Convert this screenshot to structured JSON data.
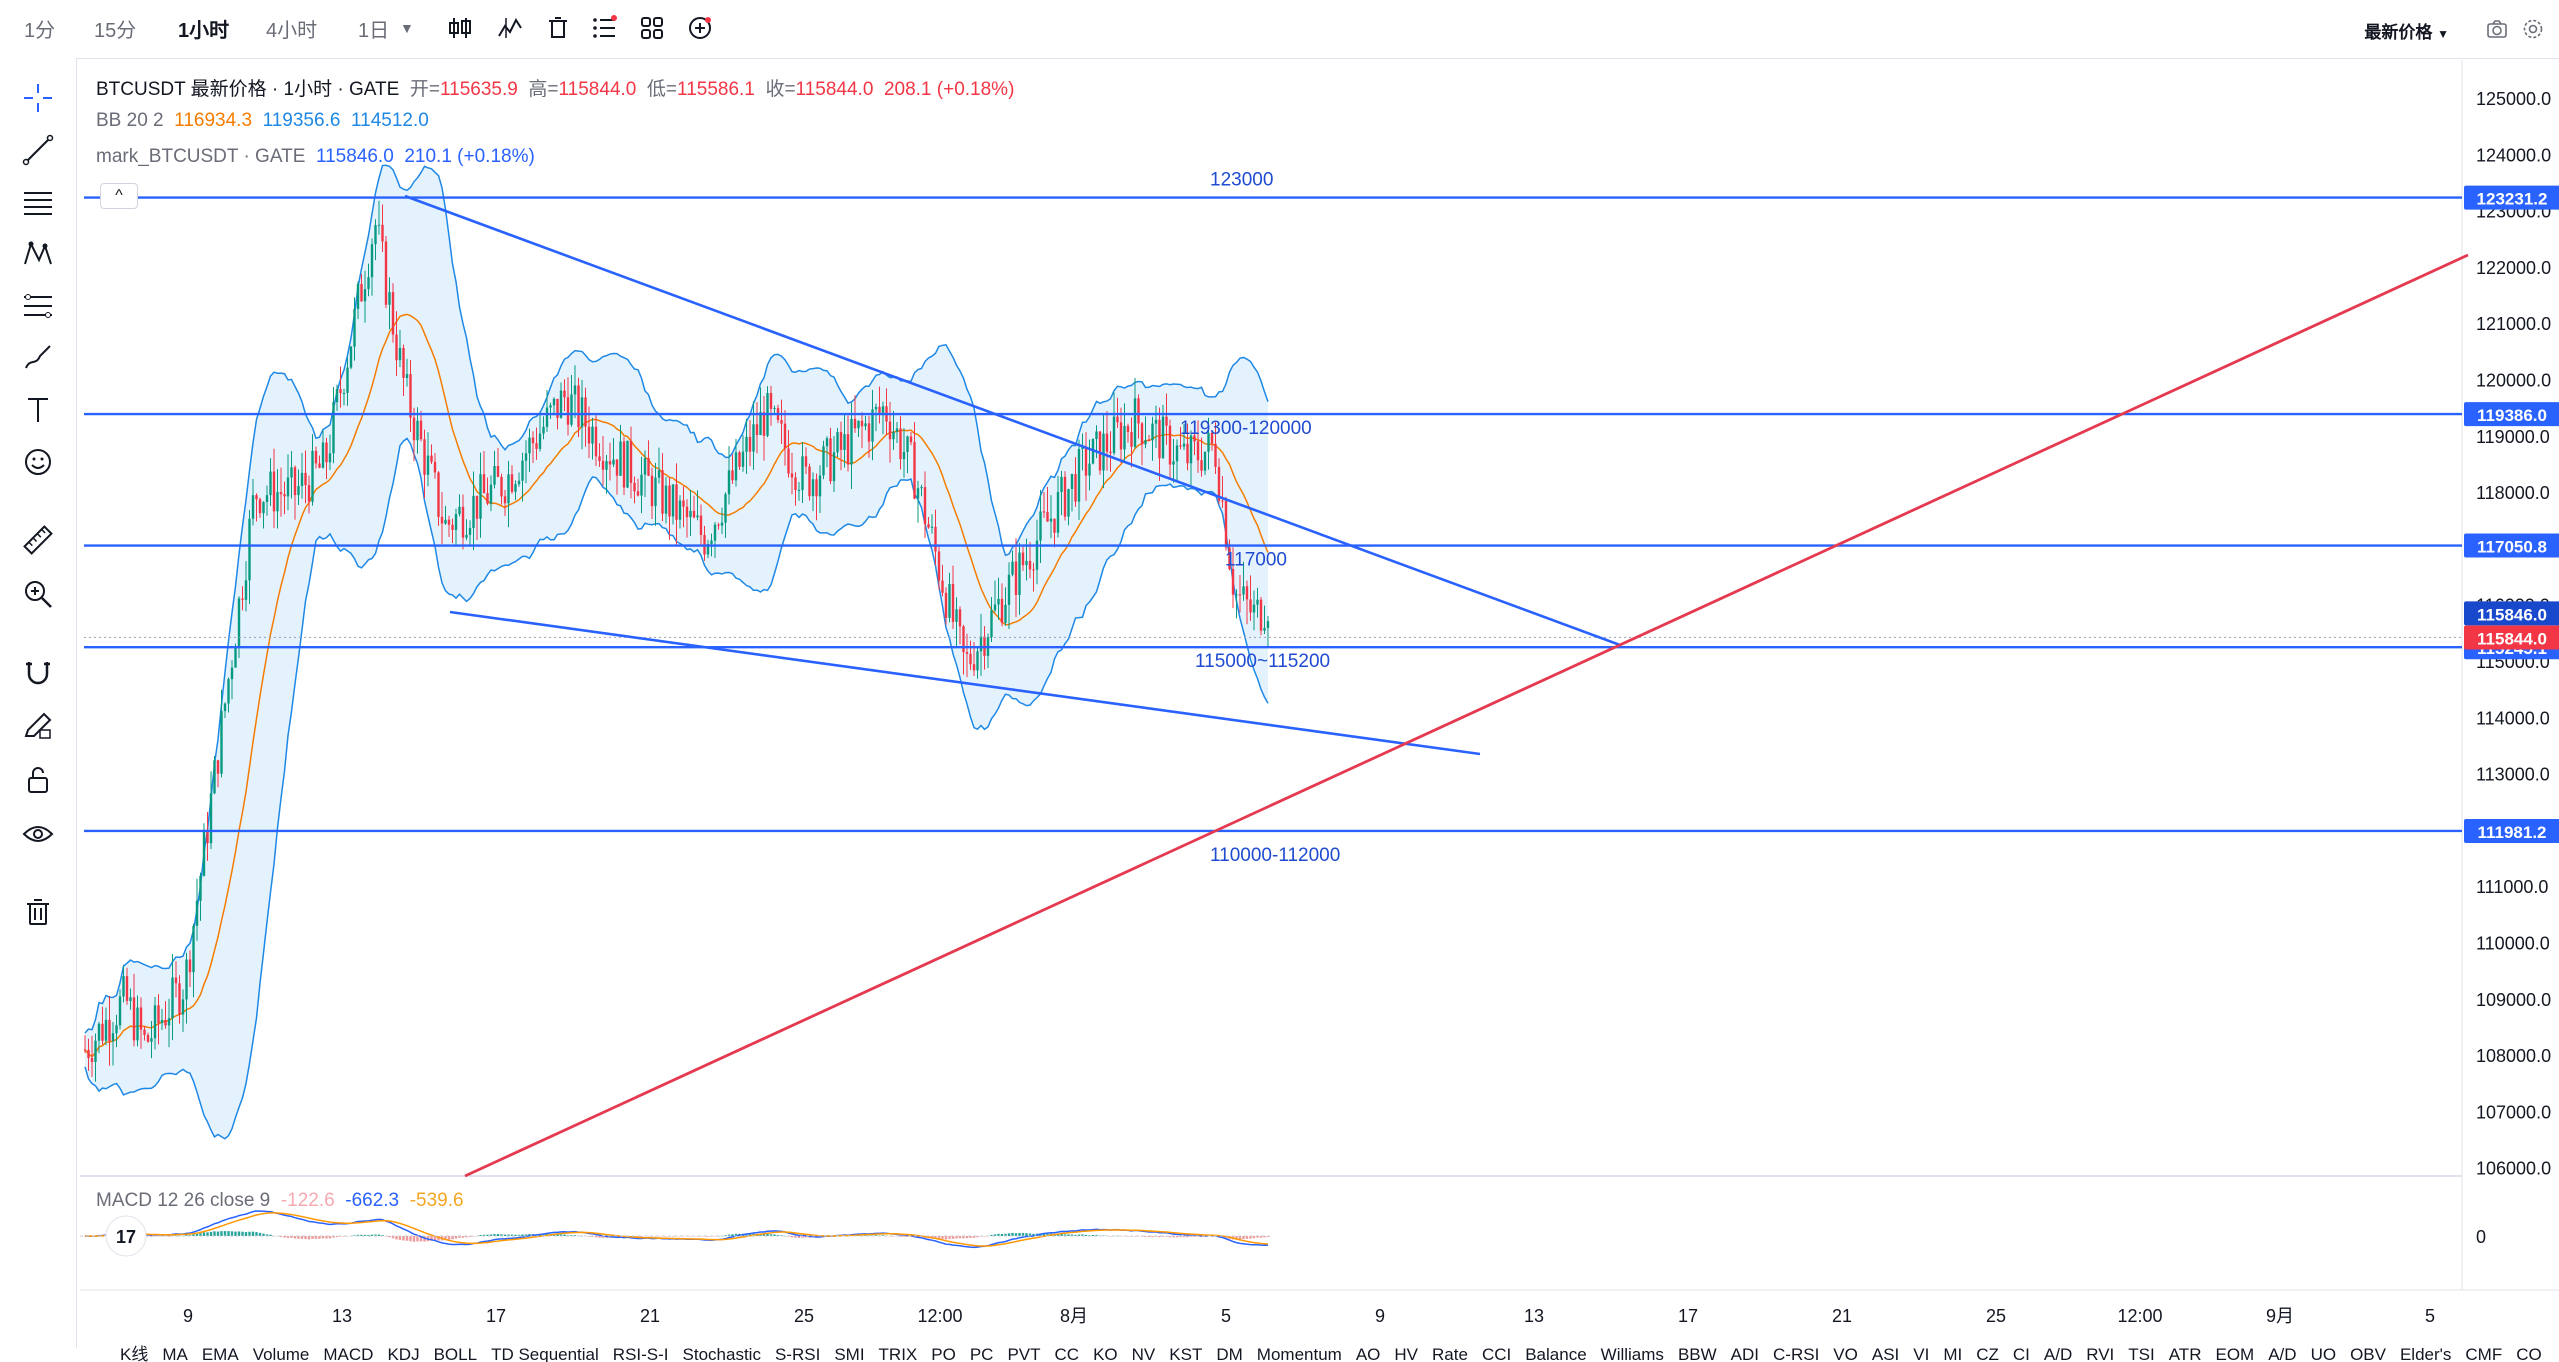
{
  "toolbar": {
    "timeframes": [
      "1分",
      "15分",
      "1小时",
      "4小时",
      "1日"
    ],
    "active_timeframe": "1小时",
    "price_type": "最新价格"
  },
  "legend": {
    "symbol_line": "BTCUSDT 最新价格 · 1小时 · GATE",
    "open_label": "开=",
    "open": "115635.9",
    "high_label": "高=",
    "high": "115844.0",
    "low_label": "低=",
    "low": "115586.1",
    "close_label": "收=",
    "close": "115844.0",
    "change": "208.1 (+0.18%)",
    "bb_label": "BB 20 2",
    "bb_values": [
      "116934.3",
      "119356.6",
      "114512.0"
    ],
    "mark_label": "mark_BTCUSDT · GATE",
    "mark_value": "115846.0",
    "mark_change": "210.1 (+0.18%)"
  },
  "macd": {
    "label": "MACD 12 26 close 9",
    "values": [
      "-122.6",
      "-662.3",
      "-539.6"
    ],
    "zero_label": "0"
  },
  "annotations": [
    "123000",
    "119300-120000",
    "117000",
    "115000~115200",
    "110000-112000"
  ],
  "price_axis": {
    "ticks": [
      "125000.0",
      "124000.0",
      "123000.0",
      "122000.0",
      "121000.0",
      "120000.0",
      "119000.0",
      "118000.0",
      "117000.0",
      "116000.0",
      "115000.0",
      "114000.0",
      "113000.0",
      "112000.0",
      "111000.0",
      "110000.0",
      "109000.0",
      "108000.0",
      "107000.0",
      "106000.0"
    ],
    "line_labels": [
      "123231.2",
      "119386.0",
      "117050.8",
      "111981.2",
      "115245.1"
    ],
    "mark_label": "115846.0",
    "last_label": "115844.0"
  },
  "time_axis": [
    "9",
    "13",
    "17",
    "21",
    "25",
    "12:00",
    "8月",
    "5",
    "9",
    "13",
    "17",
    "21",
    "25",
    "12:00",
    "9月",
    "5"
  ],
  "indicators_bar": [
    "K线",
    "MA",
    "EMA",
    "Volume",
    "MACD",
    "KDJ",
    "BOLL",
    "TD Sequential",
    "RSI-S-I",
    "Stochastic",
    "S-RSI",
    "SMI",
    "TRIX",
    "PO",
    "PC",
    "PVT",
    "CC",
    "KO",
    "NV",
    "KST",
    "DM",
    "Momentum",
    "AO",
    "HV",
    "Rate",
    "CCI",
    "Balance",
    "Williams",
    "BBW",
    "ADI",
    "C-RSI",
    "VO",
    "ASI",
    "VI",
    "MI",
    "CZ",
    "CI",
    "A/D",
    "RVI",
    "TSI",
    "ATR",
    "EOM",
    "A/D",
    "UO",
    "OBV",
    "Elder's",
    "CMF",
    "CO"
  ],
  "colors": {
    "up": "#089981",
    "down": "#f23645",
    "line_blue": "#2962ff",
    "bb_band": "#1e88e5",
    "bb_mid": "#f57c00",
    "support_red": "#e53950"
  }
}
